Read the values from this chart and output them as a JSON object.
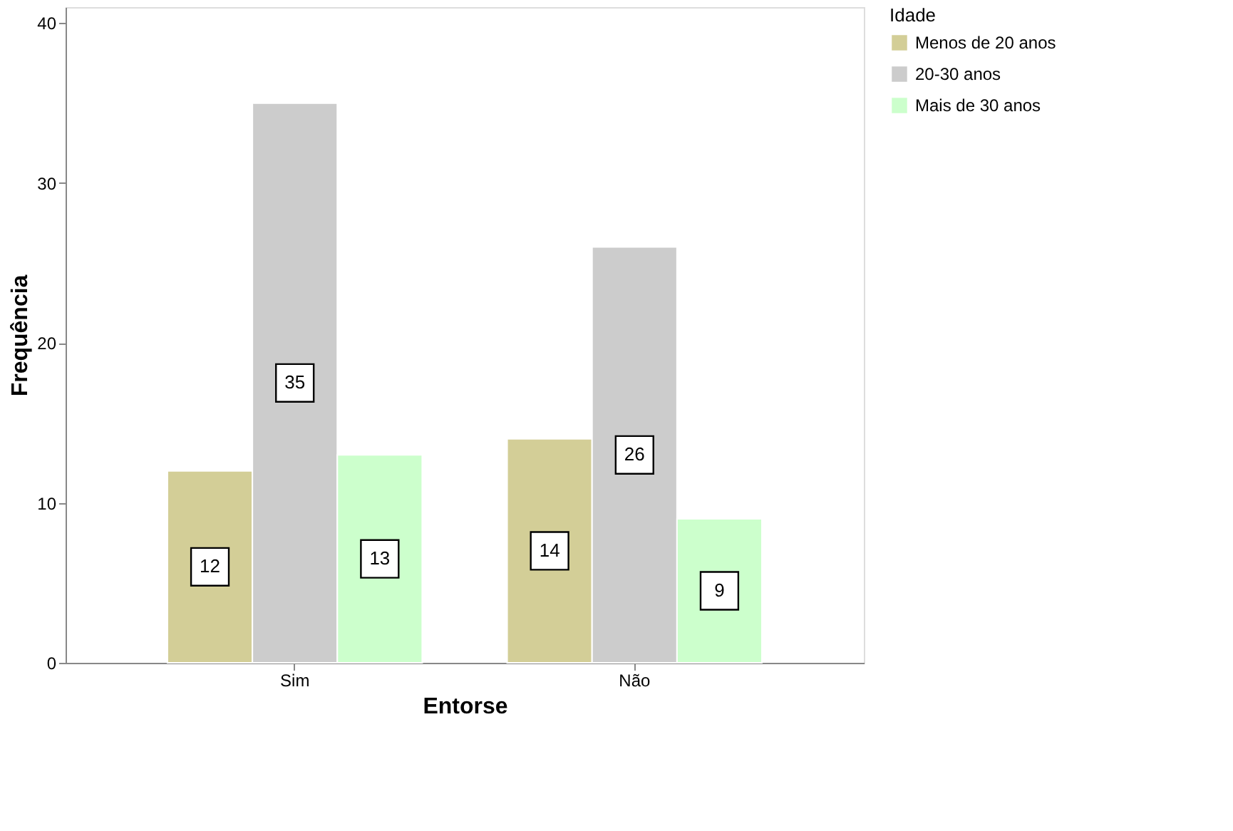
{
  "chart_data": {
    "type": "bar",
    "xlabel": "Entorse",
    "ylabel": "Frequência",
    "legend_title": "Idade",
    "categories": [
      "Sim",
      "Não"
    ],
    "series": [
      {
        "name": "Menos de 20 anos",
        "color": "#d3ce97",
        "values": [
          12,
          14
        ]
      },
      {
        "name": "20-30 anos",
        "color": "#cccccc",
        "values": [
          35,
          26
        ]
      },
      {
        "name": "Mais de 30 anos",
        "color": "#ccffcc",
        "values": [
          13,
          9
        ]
      }
    ],
    "ylim": [
      0,
      41
    ],
    "yticks": [
      0,
      10,
      20,
      30,
      40
    ],
    "grid": false,
    "legend": "top right",
    "data_labels": true
  }
}
